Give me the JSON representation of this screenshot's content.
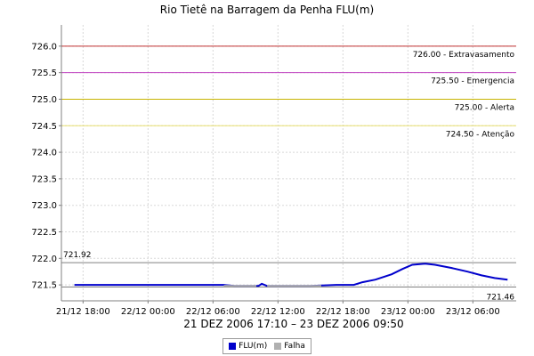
{
  "chart_data": {
    "type": "line",
    "title": "Rio Tietê na Barragem da Penha FLU(m)",
    "xlabel": "21 DEZ 2006 17:10 – 23 DEZ 2006 09:50",
    "ylim": [
      721.2,
      726.4
    ],
    "y_ticks": [
      "721.5",
      "722.0",
      "722.5",
      "723.0",
      "723.5",
      "724.0",
      "724.5",
      "725.0",
      "725.5",
      "726.0"
    ],
    "x_range_hours": [
      -2.0,
      40.0
    ],
    "x_ticks": [
      {
        "label": "21/12 18:00",
        "hour": 0
      },
      {
        "label": "22/12 00:00",
        "hour": 6
      },
      {
        "label": "22/12 06:00",
        "hour": 12
      },
      {
        "label": "22/12 12:00",
        "hour": 18
      },
      {
        "label": "22/12 18:00",
        "hour": 24
      },
      {
        "label": "23/12 00:00",
        "hour": 30
      },
      {
        "label": "23/12 06:00",
        "hour": 36
      }
    ],
    "thresholds": [
      {
        "value": 726.0,
        "label": "726.00 - Extravasamento",
        "color": "#c03030"
      },
      {
        "value": 725.5,
        "label": "725.50 - Emergencia",
        "color": "#c040c0"
      },
      {
        "value": 725.0,
        "label": "725.00 - Alerta",
        "color": "#c8b400"
      },
      {
        "value": 724.5,
        "label": "724.50 - Atenção",
        "color": "#e8e070"
      }
    ],
    "max_marker": {
      "value": 721.92,
      "label": "721.92"
    },
    "min_marker": {
      "value": 721.46,
      "label": "721.46"
    },
    "series": [
      {
        "name": "FLU(m)",
        "color": "#0000cc",
        "x": [
          -0.8,
          5.0,
          10.0,
          11.6,
          12.0,
          13.0,
          14.0,
          16.2,
          16.5,
          17.0,
          19.0,
          21.0,
          23.4,
          25.0,
          25.8,
          27.0,
          28.5,
          29.5,
          30.4,
          31.6,
          32.5,
          34.0,
          35.5,
          36.8,
          38.0,
          39.2
        ],
        "y": [
          721.5,
          721.5,
          721.5,
          721.5,
          721.5,
          721.5,
          721.48,
          721.48,
          721.52,
          721.48,
          721.48,
          721.48,
          721.5,
          721.5,
          721.55,
          721.6,
          721.7,
          721.8,
          721.88,
          721.9,
          721.88,
          721.82,
          721.75,
          721.68,
          721.63,
          721.6
        ]
      },
      {
        "name": "Falha",
        "color": "#b0b0b0",
        "segments": [
          [
            13.0,
            16.0,
            721.48
          ],
          [
            17.0,
            22.0,
            721.48
          ]
        ]
      }
    ],
    "grid": true,
    "legend": "bottom-center"
  }
}
